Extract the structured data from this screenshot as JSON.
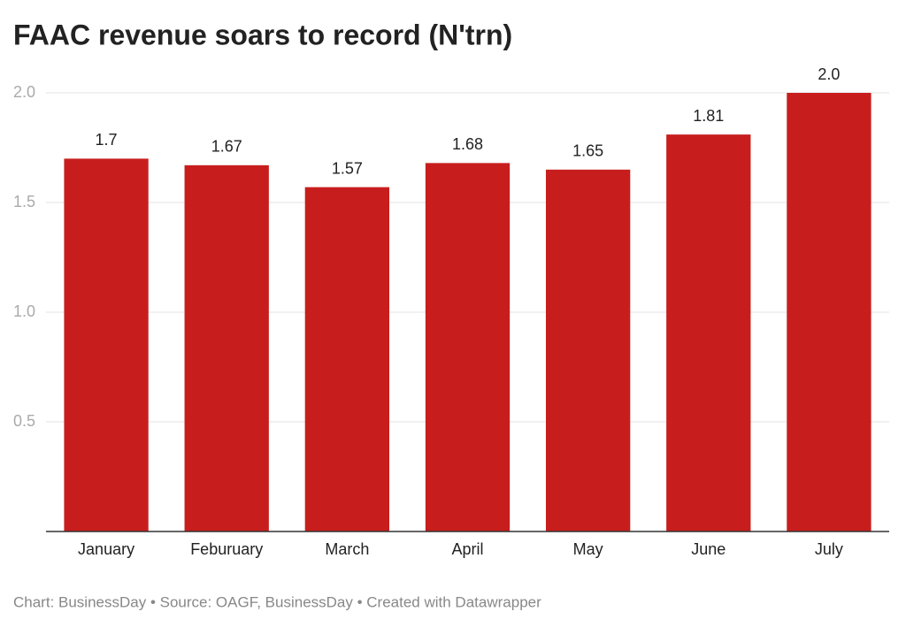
{
  "chart_data": {
    "type": "bar",
    "title": "FAAC revenue soars to record (N'trn)",
    "categories": [
      "January",
      "Feburuary",
      "March",
      "April",
      "May",
      "June",
      "July"
    ],
    "values": [
      1.7,
      1.67,
      1.57,
      1.68,
      1.65,
      1.81,
      2.0
    ],
    "value_labels": [
      "1.7",
      "1.67",
      "1.57",
      "1.68",
      "1.65",
      "1.81",
      "2.0"
    ],
    "color": "#c71e1d",
    "ylim": [
      0,
      2
    ],
    "yticks": [
      {
        "value": 0.5,
        "label": "0.5"
      },
      {
        "value": 1,
        "label": "1.0"
      },
      {
        "value": 1.5,
        "label": "1.5"
      },
      {
        "value": 2,
        "label": "2.0"
      }
    ],
    "grid": true,
    "source": "Chart: BusinessDay • Source: OAGF, BusinessDay • Created with Datawrapper"
  }
}
